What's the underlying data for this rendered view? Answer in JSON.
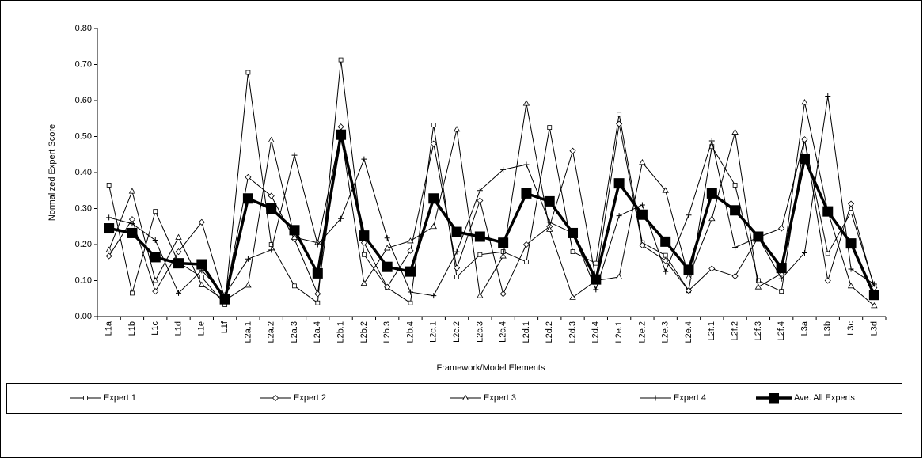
{
  "chart_data": {
    "type": "line",
    "xlabel": "Framework/Model Elements",
    "ylabel": "Normalized Expert Score",
    "categories": [
      "L1a",
      "L1b",
      "L1c",
      "L1d",
      "L1e",
      "L1f",
      "L2a.1",
      "L2a.2",
      "L2a.3",
      "L2a.4",
      "L2b.1",
      "L2b.2",
      "L2b.3",
      "L2b.4",
      "L2c.1",
      "L2c.2",
      "L2c.3",
      "L2c.4",
      "L2d.1",
      "L2d.2",
      "L2d.3",
      "L2d.4",
      "L2e.1",
      "L2e.2",
      "L2e.3",
      "L2e.4",
      "L2f.1",
      "L2f.2",
      "L2f.3",
      "L2f.4",
      "L3a",
      "L3b",
      "L3c",
      "L3d"
    ],
    "ylim": [
      0,
      0.8
    ],
    "yticks": [
      {
        "value": 0,
        "label": "0.00"
      },
      {
        "value": 0.1,
        "label": "0.10"
      },
      {
        "value": 0.2,
        "label": "0.20"
      },
      {
        "value": 0.3,
        "label": "0.30"
      },
      {
        "value": 0.4,
        "label": "0.40"
      },
      {
        "value": 0.5,
        "label": "0.50"
      },
      {
        "value": 0.6,
        "label": "0.60"
      },
      {
        "value": 0.7,
        "label": "0.70"
      },
      {
        "value": 0.8,
        "label": "0.80"
      }
    ],
    "legend": "bottom",
    "series": [
      {
        "name": "Expert 1",
        "color": "#000000",
        "marker": "square",
        "values": [
          0.365,
          0.065,
          0.292,
          0.15,
          0.11,
          0.033,
          0.678,
          0.2,
          0.085,
          0.038,
          0.713,
          0.172,
          0.08,
          0.038,
          0.532,
          0.11,
          0.172,
          0.18,
          0.152,
          0.525,
          0.18,
          0.148,
          0.562,
          0.205,
          0.17,
          0.072,
          0.472,
          0.365,
          0.1,
          0.07,
          0.49,
          0.175,
          0.29,
          0.085
        ]
      },
      {
        "name": "Expert 2",
        "color": "#000000",
        "marker": "diamond",
        "values": [
          0.168,
          0.27,
          0.07,
          0.18,
          0.262,
          0.05,
          0.387,
          0.335,
          0.215,
          0.063,
          0.527,
          0.205,
          0.082,
          0.183,
          0.48,
          0.135,
          0.322,
          0.063,
          0.2,
          0.25,
          0.46,
          0.103,
          0.535,
          0.198,
          0.155,
          0.072,
          0.133,
          0.112,
          0.22,
          0.245,
          0.492,
          0.1,
          0.313,
          0.08
        ]
      },
      {
        "name": "Expert 3",
        "color": "#000000",
        "marker": "triangle",
        "values": [
          0.185,
          0.348,
          0.1,
          0.22,
          0.088,
          0.045,
          0.087,
          0.49,
          0.22,
          0.205,
          0.51,
          0.092,
          0.19,
          0.21,
          0.25,
          0.52,
          0.058,
          0.168,
          0.592,
          0.242,
          0.053,
          0.1,
          0.11,
          0.428,
          0.35,
          0.11,
          0.272,
          0.512,
          0.082,
          0.12,
          0.595,
          0.292,
          0.085,
          0.03
        ]
      },
      {
        "name": "Expert 4",
        "color": "#000000",
        "marker": "plus",
        "values": [
          0.275,
          0.258,
          0.212,
          0.065,
          0.128,
          0.06,
          0.16,
          0.185,
          0.448,
          0.2,
          0.272,
          0.437,
          0.218,
          0.068,
          0.058,
          0.18,
          0.35,
          0.408,
          0.422,
          0.262,
          0.232,
          0.075,
          0.28,
          0.31,
          0.125,
          0.282,
          0.488,
          0.192,
          0.22,
          0.105,
          0.177,
          0.612,
          0.132,
          0.09
        ]
      },
      {
        "name": "Ave. All Experts",
        "color": "#000000",
        "marker": "filled-square",
        "values": [
          0.245,
          0.232,
          0.165,
          0.148,
          0.145,
          0.048,
          0.328,
          0.3,
          0.24,
          0.12,
          0.505,
          0.225,
          0.138,
          0.125,
          0.328,
          0.235,
          0.222,
          0.205,
          0.342,
          0.32,
          0.232,
          0.103,
          0.37,
          0.283,
          0.208,
          0.13,
          0.342,
          0.295,
          0.222,
          0.135,
          0.438,
          0.292,
          0.203,
          0.06
        ]
      }
    ]
  }
}
